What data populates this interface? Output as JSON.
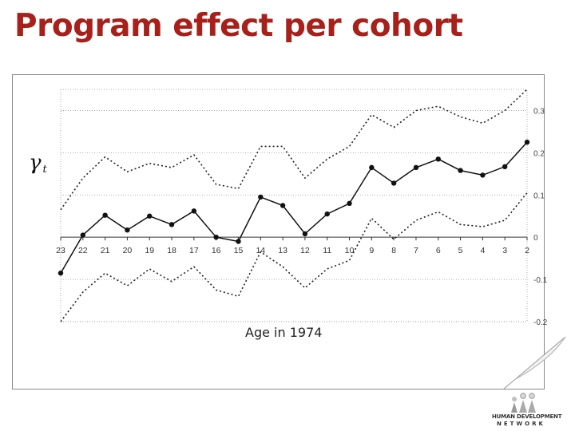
{
  "slide": {
    "title": "Program effect per cohort",
    "logo_line1": "HUMAN DEVELOPMENT",
    "logo_line2": "NETWORK",
    "title_color": "#a8201a"
  },
  "chart_data": {
    "type": "line",
    "ylabel": "γ_t",
    "xlabel": "Age in 1974",
    "categories": [
      "23",
      "22",
      "21",
      "20",
      "19",
      "18",
      "17",
      "16",
      "15",
      "14",
      "13",
      "12",
      "11",
      "10",
      "9",
      "8",
      "7",
      "6",
      "5",
      "4",
      "3",
      "2"
    ],
    "ylim": [
      -0.2,
      0.35
    ],
    "yticks": [
      0.3,
      0.2,
      0.1,
      0,
      -0.1,
      -0.2
    ],
    "ytick_labels": [
      "0.3",
      "0.2",
      "0.1",
      "0",
      "-0.1",
      "-0.2"
    ],
    "y_axis_side": "right",
    "grid": "dotted horizontal",
    "series": [
      {
        "role": "estimate",
        "style": "solid-with-markers",
        "values": [
          -0.085,
          0.005,
          0.052,
          0.017,
          0.05,
          0.03,
          0.062,
          0.0,
          -0.01,
          0.095,
          0.075,
          0.008,
          0.055,
          0.08,
          0.165,
          0.128,
          0.165,
          0.185,
          0.158,
          0.147,
          0.167,
          0.225
        ]
      },
      {
        "role": "upper-bound",
        "style": "dotted",
        "values": [
          0.065,
          0.14,
          0.19,
          0.155,
          0.175,
          0.165,
          0.195,
          0.125,
          0.115,
          0.215,
          0.215,
          0.14,
          0.185,
          0.215,
          0.29,
          0.26,
          0.3,
          0.31,
          0.285,
          0.27,
          0.3,
          0.35
        ]
      },
      {
        "role": "lower-bound",
        "style": "dotted",
        "values": [
          -0.2,
          -0.13,
          -0.085,
          -0.115,
          -0.075,
          -0.105,
          -0.07,
          -0.125,
          -0.14,
          -0.035,
          -0.07,
          -0.12,
          -0.075,
          -0.055,
          0.045,
          -0.005,
          0.04,
          0.06,
          0.03,
          0.025,
          0.04,
          0.105
        ]
      }
    ]
  }
}
